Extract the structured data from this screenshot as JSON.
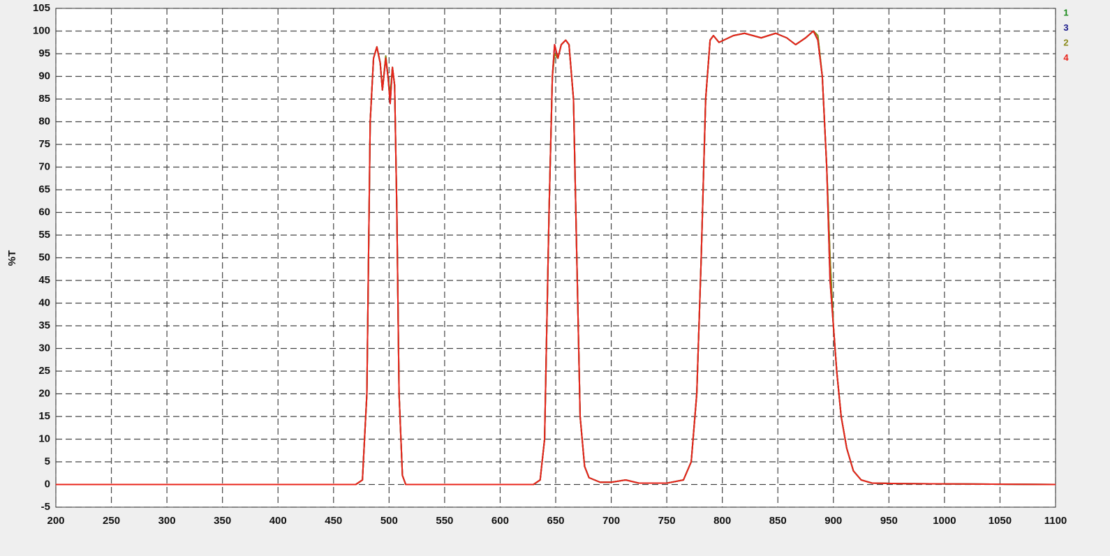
{
  "chart_data": {
    "type": "line",
    "ylabel": "%T",
    "x": [
      200,
      470,
      476,
      480,
      483,
      486,
      489,
      492,
      494,
      497,
      499,
      501,
      503,
      505,
      507,
      509,
      512,
      515,
      630,
      636,
      640,
      644,
      647,
      649,
      652,
      655,
      659,
      662,
      666,
      669,
      672,
      676,
      680,
      690,
      700,
      713,
      725,
      750,
      765,
      772,
      777,
      781,
      785,
      789,
      792,
      797,
      810,
      820,
      835,
      848,
      858,
      866,
      875,
      882,
      886,
      890,
      894,
      897,
      900,
      903,
      907,
      912,
      918,
      925,
      935,
      960,
      1100
    ],
    "series": [
      {
        "name": "1",
        "color": "#1a8a1a",
        "values": [
          0,
          0,
          1,
          20,
          80,
          94,
          96.5,
          93,
          87,
          94.5,
          90,
          86,
          92,
          88,
          60,
          20,
          2,
          0,
          0,
          1,
          10,
          60,
          90,
          95,
          94,
          97,
          98,
          97,
          85,
          50,
          15,
          4,
          1.5,
          0.5,
          0.5,
          1,
          0.3,
          0.3,
          1,
          5,
          20,
          50,
          85,
          98,
          99,
          97.5,
          99,
          99.5,
          98.5,
          99.5,
          98.5,
          97,
          98.5,
          100,
          99,
          90,
          70,
          50,
          35,
          25,
          15,
          8,
          3,
          1,
          0.3,
          0.2,
          0
        ]
      },
      {
        "name": "3",
        "color": "#1a1a8a",
        "values": [
          0,
          0,
          1,
          20,
          80,
          94,
          96.5,
          93,
          87,
          94,
          90,
          84,
          92,
          88,
          60,
          20,
          2,
          0,
          0,
          1,
          10,
          60,
          90,
          97,
          94,
          97,
          98,
          97,
          85,
          50,
          15,
          4,
          1.5,
          0.5,
          0.5,
          1,
          0.3,
          0.3,
          1,
          5,
          20,
          50,
          85,
          98,
          99,
          97.5,
          99,
          99.5,
          98.5,
          99.5,
          98.5,
          97,
          98.5,
          100,
          98,
          90,
          70,
          45,
          35,
          25,
          15,
          8,
          3,
          1,
          0.3,
          0.2,
          0
        ]
      },
      {
        "name": "2",
        "color": "#8a8a1a",
        "values": [
          0,
          0,
          1,
          20,
          80,
          94,
          96.5,
          93,
          87,
          94.5,
          90,
          85,
          92,
          88,
          60,
          20,
          2,
          0,
          0,
          1,
          10,
          60,
          90,
          95,
          94,
          97,
          98,
          97,
          85,
          50,
          15,
          4,
          1.5,
          0.5,
          0.5,
          1,
          0.3,
          0.3,
          1,
          5,
          20,
          50,
          85,
          98,
          99,
          97.5,
          99,
          99.5,
          98.5,
          99.5,
          98.5,
          97,
          98.5,
          100,
          99,
          90,
          70,
          50,
          35,
          25,
          15,
          8,
          3,
          1,
          0.3,
          0.2,
          0
        ]
      },
      {
        "name": "4",
        "color": "#e8231a",
        "values": [
          0,
          0,
          1,
          20,
          80,
          94,
          96.5,
          93,
          87,
          94,
          90,
          84,
          92,
          88,
          60,
          20,
          2,
          0,
          0,
          1,
          10,
          60,
          90,
          97,
          94,
          97,
          98,
          97,
          85,
          50,
          15,
          4,
          1.5,
          0.5,
          0.5,
          1,
          0.3,
          0.3,
          1,
          5,
          20,
          50,
          85,
          98,
          99,
          97.5,
          99,
          99.5,
          98.5,
          99.5,
          98.5,
          97,
          98.5,
          100,
          98,
          90,
          70,
          45,
          35,
          25,
          15,
          8,
          3,
          1,
          0.3,
          0.2,
          0
        ]
      }
    ],
    "xlim": [
      200,
      1100
    ],
    "xticks": [
      200,
      250,
      300,
      350,
      400,
      450,
      500,
      550,
      600,
      650,
      700,
      750,
      800,
      850,
      900,
      950,
      1000,
      1050,
      1100
    ],
    "ylim": [
      -5,
      105
    ],
    "yticks": [
      -5,
      0,
      5,
      10,
      15,
      20,
      25,
      30,
      35,
      40,
      45,
      50,
      55,
      60,
      65,
      70,
      75,
      80,
      85,
      90,
      95,
      100,
      105
    ],
    "grid": true
  }
}
